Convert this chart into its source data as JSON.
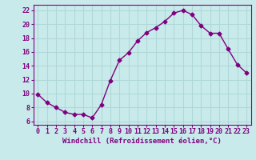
{
  "x": [
    0,
    1,
    2,
    3,
    4,
    5,
    6,
    7,
    8,
    9,
    10,
    11,
    12,
    13,
    14,
    15,
    16,
    17,
    18,
    19,
    20,
    21,
    22,
    23
  ],
  "y": [
    9.9,
    8.7,
    8.0,
    7.3,
    7.0,
    7.0,
    6.5,
    8.4,
    11.9,
    14.8,
    15.9,
    17.6,
    18.8,
    19.5,
    20.4,
    21.6,
    22.0,
    21.4,
    19.8,
    18.7,
    18.7,
    16.4,
    14.2,
    13.0
  ],
  "line_color": "#800080",
  "marker": "D",
  "marker_size": 2.5,
  "background_color": "#c8eaea",
  "grid_color": "#b0d8d8",
  "xlabel": "Windchill (Refroidissement éolien,°C)",
  "ylabel": "",
  "xlim": [
    -0.5,
    23.5
  ],
  "ylim": [
    5.5,
    22.8
  ],
  "yticks": [
    6,
    8,
    10,
    12,
    14,
    16,
    18,
    20,
    22
  ],
  "xticks": [
    0,
    1,
    2,
    3,
    4,
    5,
    6,
    7,
    8,
    9,
    10,
    11,
    12,
    13,
    14,
    15,
    16,
    17,
    18,
    19,
    20,
    21,
    22,
    23
  ],
  "axis_color": "#800080",
  "tick_color": "#800080",
  "xlabel_color": "#800080",
  "linewidth": 1.0,
  "xlabel_fontsize": 6.5,
  "tick_labelsize": 6.0
}
